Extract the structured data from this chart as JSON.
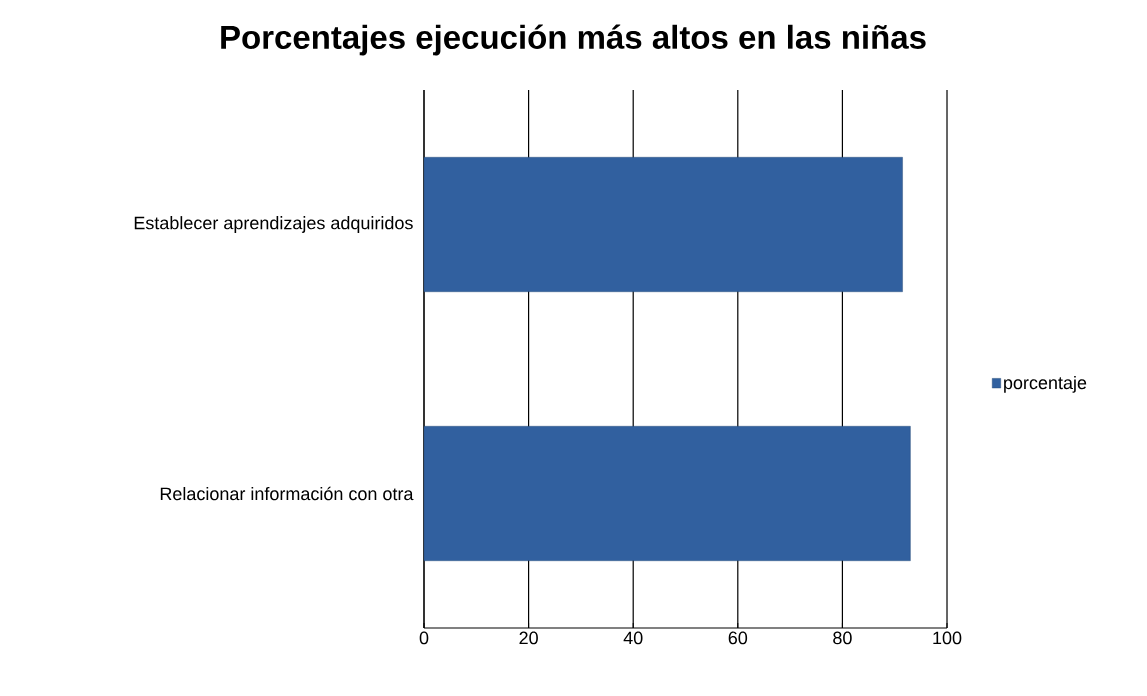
{
  "chart_data": {
    "type": "bar",
    "orientation": "horizontal",
    "title": "Porcentajes ejecución más altos en las niñas",
    "categories": [
      "Establecer aprendizajes adquiridos",
      "Relacionar información con otra"
    ],
    "series": [
      {
        "name": "porcentaje",
        "color": "#31609f",
        "values": [
          91.5,
          93
        ]
      }
    ],
    "xlim": [
      0,
      100
    ],
    "xticks": [
      0,
      20,
      40,
      60,
      80,
      100
    ],
    "grid": "x",
    "legend": "right"
  }
}
